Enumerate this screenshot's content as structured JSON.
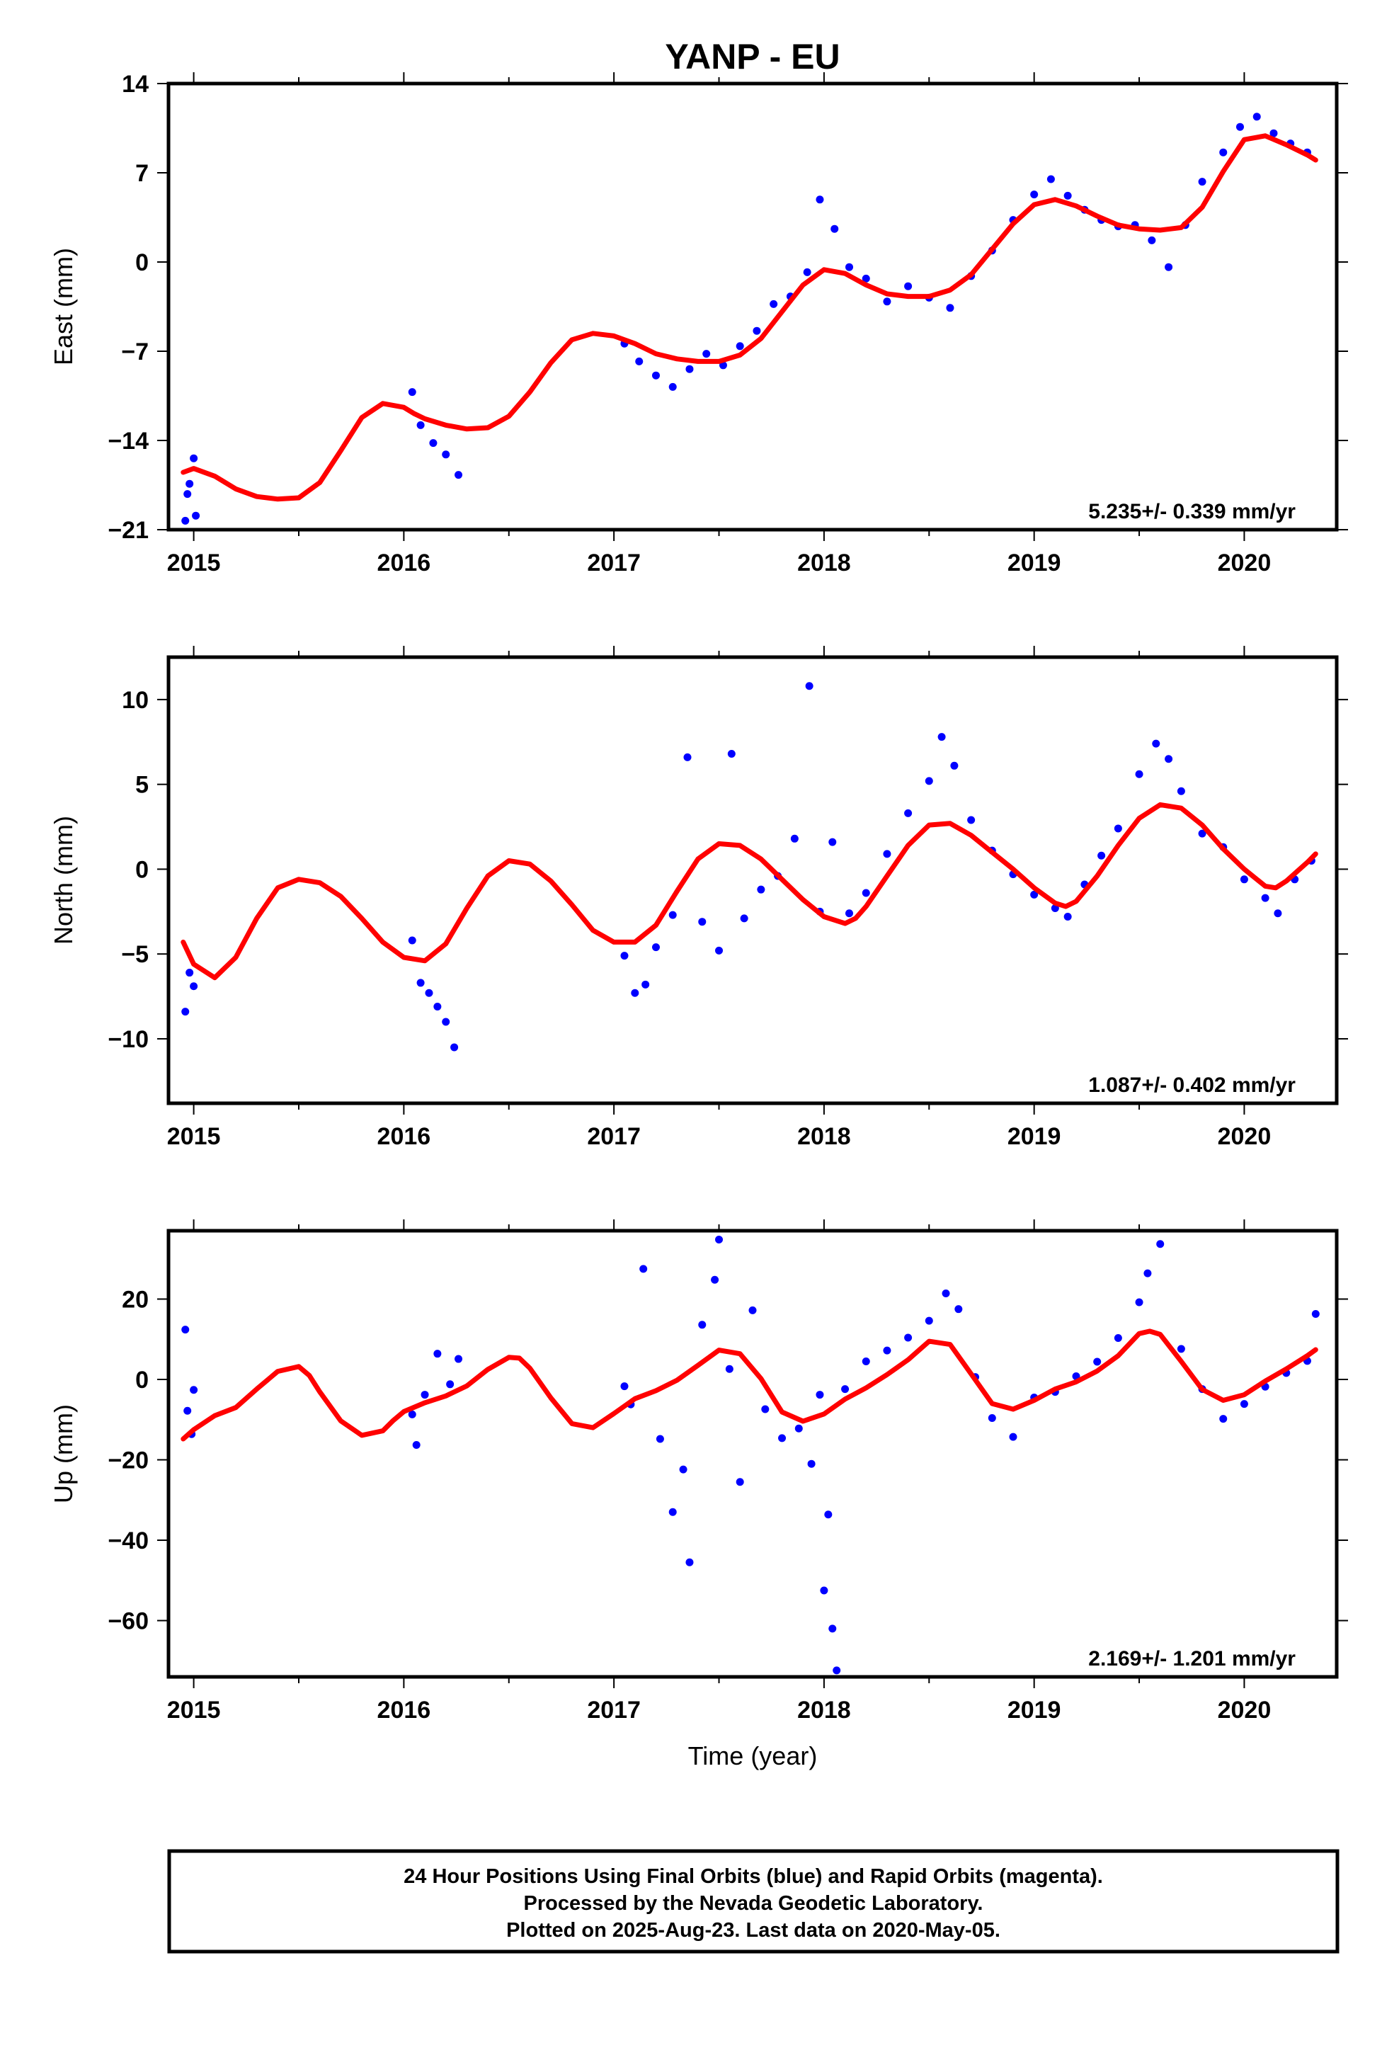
{
  "title": "YANP - EU",
  "xlabel": "Time (year)",
  "footer": {
    "lines": [
      "24 Hour Positions Using Final Orbits (blue) and Rapid Orbits (magenta).",
      "Processed by the Nevada Geodetic Laboratory.",
      "Plotted on 2025-Aug-23. Last data on 2020-May-05."
    ]
  },
  "colors": {
    "points": "#0000ff",
    "fit": "#ff0000",
    "frame": "#000000"
  },
  "chart_data": [
    {
      "type": "scatter",
      "component": "east",
      "ylabel": "East (mm)",
      "rate_label": "5.235+/- 0.339 mm/yr",
      "xlim": [
        2014.88,
        2020.44
      ],
      "ylim": [
        -21,
        14
      ],
      "xticks": [
        2015,
        2016,
        2017,
        2018,
        2019,
        2020
      ],
      "yticks": [
        -21,
        -14,
        -7,
        0,
        7,
        14
      ],
      "ytick_labels": [
        "−21",
        "−14",
        "−7",
        "0",
        "7",
        "14"
      ],
      "fit_curve": {
        "x": [
          2014.95,
          2015.0,
          2015.1,
          2015.2,
          2015.3,
          2015.4,
          2015.5,
          2015.6,
          2015.7,
          2015.8,
          2015.9,
          2016.0,
          2016.05,
          2016.1,
          2016.2,
          2016.3,
          2016.4,
          2016.5,
          2016.6,
          2016.7,
          2016.8,
          2016.9,
          2017.0,
          2017.1,
          2017.2,
          2017.3,
          2017.4,
          2017.5,
          2017.6,
          2017.7,
          2017.8,
          2017.9,
          2018.0,
          2018.1,
          2018.2,
          2018.3,
          2018.4,
          2018.5,
          2018.6,
          2018.7,
          2018.8,
          2018.9,
          2019.0,
          2019.1,
          2019.2,
          2019.3,
          2019.4,
          2019.5,
          2019.6,
          2019.7,
          2019.8,
          2019.9,
          2020.0,
          2020.1,
          2020.2,
          2020.3,
          2020.34
        ],
        "y": [
          -16.5,
          -16.2,
          -16.8,
          -17.8,
          -18.4,
          -18.6,
          -18.5,
          -17.3,
          -14.8,
          -12.2,
          -11.1,
          -11.4,
          -11.9,
          -12.3,
          -12.8,
          -13.1,
          -13.0,
          -12.1,
          -10.2,
          -7.9,
          -6.1,
          -5.6,
          -5.8,
          -6.4,
          -7.2,
          -7.6,
          -7.8,
          -7.8,
          -7.3,
          -6.0,
          -3.9,
          -1.8,
          -0.6,
          -0.9,
          -1.8,
          -2.5,
          -2.7,
          -2.7,
          -2.2,
          -1.0,
          1.0,
          3.0,
          4.5,
          4.9,
          4.4,
          3.6,
          2.9,
          2.6,
          2.5,
          2.7,
          4.3,
          7.1,
          9.6,
          9.9,
          9.2,
          8.4,
          8.0
        ]
      },
      "points": {
        "x": [
          2014.96,
          2014.97,
          2014.98,
          2015.0,
          2015.01,
          2016.04,
          2016.08,
          2016.14,
          2016.2,
          2016.26,
          2017.05,
          2017.12,
          2017.2,
          2017.28,
          2017.36,
          2017.44,
          2017.52,
          2017.6,
          2017.68,
          2017.76,
          2017.84,
          2017.92,
          2017.98,
          2018.05,
          2018.12,
          2018.2,
          2018.3,
          2018.4,
          2018.5,
          2018.6,
          2018.7,
          2018.8,
          2018.9,
          2019.0,
          2019.08,
          2019.16,
          2019.24,
          2019.32,
          2019.4,
          2019.48,
          2019.56,
          2019.64,
          2019.72,
          2019.8,
          2019.9,
          2019.98,
          2020.06,
          2020.14,
          2020.22,
          2020.3
        ],
        "y": [
          -20.3,
          -18.2,
          -17.4,
          -15.4,
          -19.9,
          -10.2,
          -12.8,
          -14.2,
          -15.1,
          -16.7,
          -6.4,
          -7.8,
          -8.9,
          -9.8,
          -8.4,
          -7.2,
          -8.1,
          -6.6,
          -5.4,
          -3.3,
          -2.7,
          -0.8,
          4.9,
          2.6,
          -0.4,
          -1.3,
          -3.1,
          -1.9,
          -2.8,
          -3.6,
          -1.1,
          0.9,
          3.3,
          5.3,
          6.5,
          5.2,
          4.1,
          3.3,
          2.8,
          2.9,
          1.7,
          -0.4,
          2.9,
          6.3,
          8.6,
          10.6,
          11.4,
          10.1,
          9.3,
          8.6
        ]
      }
    },
    {
      "type": "scatter",
      "component": "north",
      "ylabel": "North (mm)",
      "rate_label": "1.087+/- 0.402 mm/yr",
      "xlim": [
        2014.88,
        2020.44
      ],
      "ylim": [
        -13.8,
        12.5
      ],
      "xticks": [
        2015,
        2016,
        2017,
        2018,
        2019,
        2020
      ],
      "yticks": [
        -10,
        -5,
        0,
        5,
        10
      ],
      "ytick_labels": [
        "−10",
        "−5",
        "0",
        "5",
        "10"
      ],
      "fit_curve": {
        "x": [
          2014.95,
          2015.0,
          2015.1,
          2015.2,
          2015.3,
          2015.4,
          2015.5,
          2015.6,
          2015.7,
          2015.8,
          2015.9,
          2016.0,
          2016.1,
          2016.2,
          2016.3,
          2016.4,
          2016.5,
          2016.6,
          2016.7,
          2016.8,
          2016.9,
          2017.0,
          2017.1,
          2017.2,
          2017.3,
          2017.4,
          2017.5,
          2017.6,
          2017.7,
          2017.8,
          2017.9,
          2018.0,
          2018.1,
          2018.15,
          2018.2,
          2018.3,
          2018.4,
          2018.5,
          2018.6,
          2018.7,
          2018.8,
          2018.9,
          2019.0,
          2019.1,
          2019.15,
          2019.2,
          2019.3,
          2019.4,
          2019.5,
          2019.6,
          2019.7,
          2019.8,
          2019.9,
          2020.0,
          2020.1,
          2020.15,
          2020.2,
          2020.3,
          2020.34
        ],
        "y": [
          -4.3,
          -5.6,
          -6.4,
          -5.2,
          -2.9,
          -1.1,
          -0.6,
          -0.8,
          -1.6,
          -2.9,
          -4.3,
          -5.2,
          -5.4,
          -4.4,
          -2.3,
          -0.4,
          0.5,
          0.3,
          -0.7,
          -2.1,
          -3.6,
          -4.3,
          -4.3,
          -3.3,
          -1.3,
          0.6,
          1.5,
          1.4,
          0.6,
          -0.6,
          -1.8,
          -2.8,
          -3.2,
          -2.9,
          -2.2,
          -0.4,
          1.4,
          2.6,
          2.7,
          2.0,
          1.0,
          0.0,
          -1.1,
          -2.0,
          -2.2,
          -1.9,
          -0.4,
          1.4,
          3.0,
          3.8,
          3.6,
          2.6,
          1.2,
          0.0,
          -1.0,
          -1.1,
          -0.7,
          0.4,
          0.9
        ]
      },
      "points": {
        "x": [
          2014.96,
          2014.98,
          2015.0,
          2016.04,
          2016.08,
          2016.12,
          2016.16,
          2016.2,
          2016.24,
          2017.05,
          2017.1,
          2017.15,
          2017.2,
          2017.28,
          2017.35,
          2017.42,
          2017.5,
          2017.56,
          2017.62,
          2017.7,
          2017.78,
          2017.86,
          2017.93,
          2017.98,
          2018.04,
          2018.12,
          2018.2,
          2018.3,
          2018.4,
          2018.5,
          2018.56,
          2018.62,
          2018.7,
          2018.8,
          2018.9,
          2019.0,
          2019.1,
          2019.16,
          2019.24,
          2019.32,
          2019.4,
          2019.5,
          2019.58,
          2019.64,
          2019.7,
          2019.8,
          2019.9,
          2020.0,
          2020.1,
          2020.16,
          2020.24,
          2020.32
        ],
        "y": [
          -8.4,
          -6.1,
          -6.9,
          -4.2,
          -6.7,
          -7.3,
          -8.1,
          -9.0,
          -10.5,
          -5.1,
          -7.3,
          -6.8,
          -4.6,
          -2.7,
          6.6,
          -3.1,
          -4.8,
          6.8,
          -2.9,
          -1.2,
          -0.4,
          1.8,
          10.8,
          -2.5,
          1.6,
          -2.6,
          -1.4,
          0.9,
          3.3,
          5.2,
          7.8,
          6.1,
          2.9,
          1.1,
          -0.3,
          -1.5,
          -2.3,
          -2.8,
          -0.9,
          0.8,
          2.4,
          5.6,
          7.4,
          6.5,
          4.6,
          2.1,
          1.3,
          -0.6,
          -1.7,
          -2.6,
          -0.6,
          0.5
        ]
      }
    },
    {
      "type": "scatter",
      "component": "up",
      "ylabel": "Up (mm)",
      "rate_label": "2.169+/- 1.201 mm/yr",
      "xlim": [
        2014.88,
        2020.44
      ],
      "ylim": [
        -74,
        37
      ],
      "xticks": [
        2015,
        2016,
        2017,
        2018,
        2019,
        2020
      ],
      "yticks": [
        -60,
        -40,
        -20,
        0,
        20
      ],
      "ytick_labels": [
        "−60",
        "−40",
        "−20",
        "0",
        "20"
      ],
      "fit_curve": {
        "x": [
          2014.95,
          2015.0,
          2015.1,
          2015.2,
          2015.3,
          2015.4,
          2015.5,
          2015.55,
          2015.6,
          2015.7,
          2015.8,
          2015.9,
          2015.95,
          2016.0,
          2016.1,
          2016.2,
          2016.3,
          2016.4,
          2016.5,
          2016.55,
          2016.6,
          2016.7,
          2016.8,
          2016.9,
          2017.0,
          2017.1,
          2017.2,
          2017.3,
          2017.4,
          2017.5,
          2017.6,
          2017.7,
          2017.8,
          2017.9,
          2018.0,
          2018.1,
          2018.2,
          2018.3,
          2018.4,
          2018.5,
          2018.6,
          2018.7,
          2018.8,
          2018.9,
          2019.0,
          2019.1,
          2019.2,
          2019.3,
          2019.4,
          2019.5,
          2019.55,
          2019.6,
          2019.7,
          2019.8,
          2019.9,
          2020.0,
          2020.1,
          2020.2,
          2020.3,
          2020.34
        ],
        "y": [
          -14.8,
          -12.5,
          -9.0,
          -7.0,
          -2.4,
          2.0,
          3.2,
          1.0,
          -3.1,
          -10.3,
          -13.9,
          -12.8,
          -10.2,
          -8.0,
          -5.8,
          -4.1,
          -1.6,
          2.5,
          5.5,
          5.3,
          2.8,
          -4.6,
          -11.0,
          -12.0,
          -8.5,
          -4.8,
          -2.8,
          -0.2,
          3.5,
          7.3,
          6.4,
          0.2,
          -8.1,
          -10.4,
          -8.6,
          -4.9,
          -2.1,
          1.2,
          4.9,
          9.5,
          8.7,
          1.4,
          -6.0,
          -7.4,
          -5.2,
          -2.4,
          -0.6,
          2.1,
          5.9,
          11.4,
          12.0,
          11.2,
          4.5,
          -2.5,
          -5.2,
          -3.8,
          -0.4,
          2.6,
          5.9,
          7.4
        ]
      },
      "points": {
        "x": [
          2014.96,
          2014.97,
          2014.99,
          2015.0,
          2016.04,
          2016.06,
          2016.1,
          2016.16,
          2016.22,
          2016.26,
          2017.05,
          2017.08,
          2017.14,
          2017.22,
          2017.28,
          2017.33,
          2017.36,
          2017.42,
          2017.48,
          2017.5,
          2017.55,
          2017.6,
          2017.66,
          2017.72,
          2017.8,
          2017.88,
          2017.94,
          2017.98,
          2018.0,
          2018.02,
          2018.04,
          2018.06,
          2018.1,
          2018.2,
          2018.3,
          2018.4,
          2018.5,
          2018.58,
          2018.64,
          2018.72,
          2018.8,
          2018.9,
          2019.0,
          2019.1,
          2019.2,
          2019.3,
          2019.4,
          2019.5,
          2019.54,
          2019.6,
          2019.7,
          2019.8,
          2019.9,
          2020.0,
          2020.1,
          2020.2,
          2020.3,
          2020.34
        ],
        "y": [
          12.4,
          -7.8,
          -13.6,
          -2.6,
          -8.7,
          -16.3,
          -3.8,
          6.4,
          -1.2,
          5.1,
          -1.7,
          -6.2,
          27.5,
          -14.8,
          -33.0,
          -22.4,
          -45.5,
          13.6,
          24.8,
          34.8,
          2.6,
          -25.5,
          17.2,
          -7.4,
          -14.6,
          -12.2,
          -21.0,
          -3.8,
          -52.5,
          -33.6,
          -62.0,
          -72.4,
          -2.4,
          4.5,
          7.2,
          10.4,
          14.6,
          21.4,
          17.5,
          0.6,
          -9.6,
          -14.3,
          -4.5,
          -3.1,
          0.8,
          4.4,
          10.3,
          19.2,
          26.4,
          33.7,
          7.6,
          -2.4,
          -9.8,
          -6.1,
          -1.8,
          1.6,
          4.6,
          16.3
        ]
      }
    }
  ]
}
